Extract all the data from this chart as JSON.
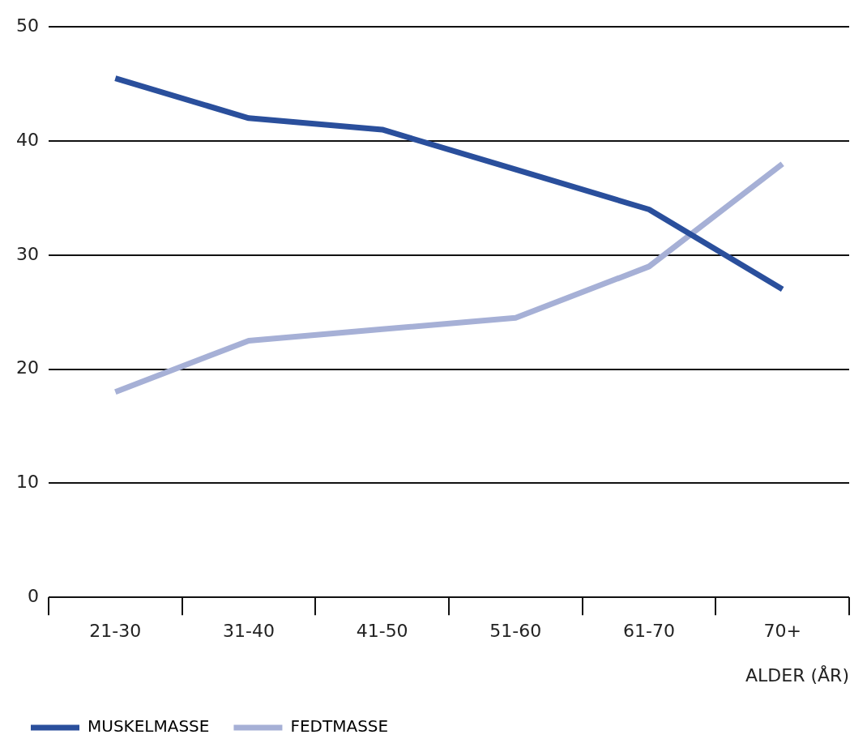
{
  "chart_data": {
    "type": "line",
    "xlabel": "ALDER (ÅR)",
    "categories": [
      "21-30",
      "31-40",
      "41-50",
      "51-60",
      "61-70",
      "70+"
    ],
    "series": [
      {
        "name": "MUSKELMASSE",
        "color": "#2a4f9c",
        "values": [
          45.5,
          42,
          41,
          37.5,
          34,
          27
        ]
      },
      {
        "name": "FEDTMASSE",
        "color": "#a6b0d6",
        "values": [
          18,
          22.5,
          23.5,
          24.5,
          29,
          38
        ]
      }
    ],
    "ylim": [
      0,
      50
    ],
    "yticks": [
      0,
      10,
      20,
      30,
      40,
      50
    ],
    "grid": "y",
    "legend": "bottom left",
    "marker": "none",
    "line_style": "solid"
  }
}
